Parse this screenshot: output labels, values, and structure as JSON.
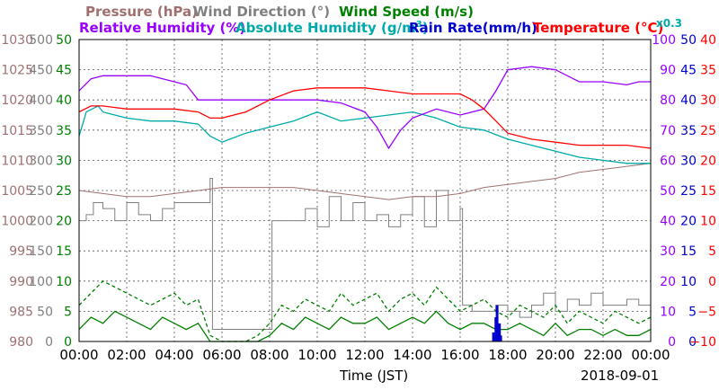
{
  "chart_data": {
    "type": "line",
    "date_label": "2018-09-01",
    "x_label": "Time (JST)",
    "x_ticks": [
      "00:00",
      "02:00",
      "04:00",
      "06:00",
      "08:00",
      "10:00",
      "12:00",
      "14:00",
      "16:00",
      "18:00",
      "20:00",
      "22:00",
      "00:00"
    ],
    "legend_row1": [
      {
        "text": "Pressure (hPa)",
        "color": "#a07070"
      },
      {
        "text": "Wind Direction (°)",
        "color": "#808080"
      },
      {
        "text": "Wind Speed (m/s)",
        "color": "#008000"
      }
    ],
    "legend_row2": [
      {
        "text": "Relative Humidity (%)",
        "color": "#9900ff"
      },
      {
        "text": "Absolute Humidity (g/m",
        "sup": "3",
        "tail": ")",
        "color": "#00aaaa"
      },
      {
        "text": "Rain Rate(mm/h)",
        "color": "#0000cc"
      },
      {
        "text": "Temperature (°C)",
        "color": "#ff0000"
      }
    ],
    "multiplier": {
      "text": "x0.3",
      "color": "#00aaaa"
    },
    "axes": [
      {
        "name": "pressure",
        "color": "#a07070",
        "ticks": [
          "980",
          "985",
          "990",
          "995",
          "1000",
          "1005",
          "1010",
          "1015",
          "1020",
          "1025",
          "1030"
        ],
        "range": [
          980,
          1030
        ]
      },
      {
        "name": "wind_direction",
        "color": "#808080",
        "ticks": [
          "0",
          "50",
          "100",
          "150",
          "200",
          "250",
          "300",
          "350",
          "400",
          "450",
          "500"
        ],
        "range": [
          0,
          500
        ]
      },
      {
        "name": "wind_speed",
        "color": "#008000",
        "ticks": [
          "0",
          "5",
          "10",
          "15",
          "20",
          "25",
          "30",
          "35",
          "40",
          "45",
          "50"
        ],
        "range": [
          0,
          50
        ]
      },
      {
        "name": "relative_humidity",
        "color": "#9900ff",
        "ticks": [
          "0",
          "10",
          "20",
          "30",
          "40",
          "50",
          "60",
          "70",
          "80",
          "90",
          "100"
        ],
        "range": [
          0,
          100
        ]
      },
      {
        "name": "rain_rate",
        "color": "#0000cc",
        "ticks": [
          "0",
          "5",
          "10",
          "15",
          "20",
          "25",
          "30",
          "35",
          "40",
          "45",
          "50"
        ],
        "range": [
          0,
          50
        ]
      },
      {
        "name": "temperature",
        "color": "#ff0000",
        "ticks": [
          "−10",
          "−5",
          "0",
          "5",
          "10",
          "15",
          "20",
          "25",
          "30",
          "35",
          "40"
        ],
        "range": [
          -10,
          40
        ]
      }
    ],
    "series": [
      {
        "name": "Temperature (°C)",
        "color": "#ff0000",
        "axis": "temperature",
        "style": "solid",
        "x": [
          0,
          0.5,
          1,
          2,
          3,
          4,
          5,
          5.5,
          6,
          7,
          8,
          9,
          10,
          11,
          12,
          13,
          14,
          15,
          16,
          16.5,
          17,
          17.5,
          18,
          19,
          20,
          21,
          22,
          23,
          24
        ],
        "y": [
          28,
          29,
          29,
          28.5,
          28.5,
          28.5,
          28,
          27,
          27,
          28,
          30,
          31.5,
          32,
          32,
          32,
          31.5,
          31,
          31,
          31,
          30,
          28.5,
          26.5,
          24.5,
          23.5,
          23,
          22.5,
          22.5,
          22.5,
          22
        ]
      },
      {
        "name": "Absolute Humidity (g/m3)",
        "color": "#00aaaa",
        "axis": "wind_speed",
        "style": "solid",
        "x": [
          0,
          0.3,
          0.8,
          1,
          2,
          3,
          4,
          5,
          5.5,
          6,
          7,
          8,
          9,
          10,
          11,
          12,
          13,
          14,
          15,
          16,
          17,
          18,
          19,
          20,
          21,
          22,
          23,
          24
        ],
        "y": [
          34,
          38,
          39,
          38,
          37,
          36.5,
          36.5,
          36,
          34,
          33,
          34.5,
          35.5,
          36.5,
          38,
          36.5,
          37,
          37.5,
          38,
          37,
          35.5,
          35,
          33.5,
          32.5,
          31.5,
          30.5,
          30,
          29.5,
          29.5
        ]
      },
      {
        "name": "Relative Humidity (%)",
        "color": "#9900ff",
        "axis": "relative_humidity",
        "style": "solid",
        "x": [
          0,
          0.5,
          1,
          2,
          3,
          4,
          4.5,
          5,
          6,
          7,
          8,
          9,
          10,
          11,
          12,
          12.5,
          13,
          13.5,
          14,
          15,
          16,
          17,
          17.5,
          18,
          19,
          20,
          21,
          22,
          23,
          23.5,
          24
        ],
        "y": [
          83,
          87,
          88,
          88,
          88,
          86,
          85,
          80,
          80,
          80,
          80,
          80,
          80,
          79,
          76,
          71,
          64,
          70,
          74,
          77,
          75,
          77,
          83,
          90,
          91,
          90,
          86,
          86,
          85,
          86,
          86
        ]
      },
      {
        "name": "Pressure (hPa)",
        "color": "#a07070",
        "axis": "pressure",
        "style": "solid",
        "x": [
          0,
          1,
          2,
          3,
          4,
          5,
          6,
          7,
          8,
          9,
          10,
          11,
          12,
          13,
          14,
          15,
          16,
          17,
          18,
          19,
          20,
          21,
          22,
          23,
          24
        ],
        "y": [
          1005,
          1004.5,
          1004,
          1004,
          1004.5,
          1005,
          1005.5,
          1005.5,
          1005.5,
          1005.5,
          1005,
          1004.5,
          1004,
          1003.5,
          1004,
          1004,
          1004.5,
          1005.5,
          1006,
          1006.5,
          1007,
          1008,
          1008.5,
          1009,
          1009.5
        ]
      },
      {
        "name": "Wind Direction (°)",
        "color": "#808080",
        "axis": "wind_direction",
        "style": "solid",
        "x": [
          0,
          0.3,
          0.6,
          1,
          1.5,
          2,
          2.5,
          3,
          3.5,
          4,
          4.5,
          5,
          5.3,
          5.5,
          5.6,
          7.5,
          8,
          8.1,
          9,
          9.5,
          10,
          10.5,
          11,
          11.5,
          12,
          12.5,
          13,
          13.5,
          14,
          14.5,
          15,
          15.5,
          16,
          16.1,
          16.5,
          17,
          17.5,
          18,
          18.5,
          19,
          19.5,
          20,
          20.5,
          21,
          21.5,
          22,
          22.5,
          23,
          23.5,
          24
        ],
        "y": [
          200,
          210,
          230,
          220,
          200,
          230,
          210,
          200,
          220,
          230,
          230,
          230,
          230,
          270,
          20,
          20,
          20,
          200,
          200,
          220,
          190,
          240,
          200,
          230,
          200,
          210,
          190,
          210,
          240,
          190,
          250,
          200,
          220,
          60,
          50,
          50,
          60,
          50,
          40,
          60,
          80,
          50,
          70,
          60,
          80,
          60,
          60,
          70,
          60,
          60
        ]
      },
      {
        "name": "Wind Speed (m/s) max",
        "color": "#008000",
        "axis": "wind_speed",
        "style": "dashed",
        "x": [
          0,
          0.5,
          1,
          1.5,
          2,
          2.5,
          3,
          3.5,
          4,
          4.5,
          5,
          5.5,
          6,
          7,
          7.5,
          8,
          8.5,
          9,
          9.5,
          10,
          10.5,
          11,
          11.5,
          12,
          12.5,
          13,
          13.5,
          14,
          14.5,
          15,
          15.5,
          16,
          16.5,
          17,
          17.5,
          18,
          18.5,
          19,
          19.5,
          20,
          20.5,
          21,
          21.5,
          22,
          22.5,
          23,
          23.5,
          24
        ],
        "y": [
          6,
          8,
          10,
          9,
          8,
          7,
          6,
          7,
          8,
          6,
          7,
          1,
          0,
          0,
          1,
          3,
          6,
          5,
          7,
          6,
          5,
          8,
          6,
          7,
          8,
          5,
          7,
          8,
          6,
          9,
          7,
          5,
          6,
          7,
          5,
          4,
          6,
          5,
          4,
          6,
          3,
          5,
          4,
          3,
          5,
          4,
          3,
          4
        ]
      },
      {
        "name": "Wind Speed (m/s) mean",
        "color": "#008000",
        "axis": "wind_speed",
        "style": "solid",
        "x": [
          0,
          0.5,
          1,
          1.5,
          2,
          2.5,
          3,
          3.5,
          4,
          4.5,
          5,
          5.5,
          6,
          7,
          7.5,
          8,
          8.5,
          9,
          9.5,
          10,
          10.5,
          11,
          11.5,
          12,
          12.5,
          13,
          13.5,
          14,
          14.5,
          15,
          15.5,
          16,
          16.5,
          17,
          17.5,
          18,
          18.5,
          19,
          19.5,
          20,
          20.5,
          21,
          21.5,
          22,
          22.5,
          23,
          23.5,
          24
        ],
        "y": [
          2,
          4,
          3,
          5,
          4,
          3,
          2,
          4,
          3,
          2,
          3,
          0,
          0,
          0,
          0,
          1,
          3,
          2,
          4,
          3,
          2,
          4,
          3,
          3,
          4,
          2,
          3,
          4,
          3,
          5,
          3,
          2,
          3,
          3,
          2,
          2,
          3,
          2,
          1,
          3,
          1,
          2,
          2,
          1,
          2,
          1,
          1,
          2
        ]
      },
      {
        "name": "Rain Rate(mm/h)",
        "color": "#0000cc",
        "axis": "rain_rate",
        "style": "bars",
        "x": [
          17.4,
          17.5,
          17.55,
          17.6,
          17.65,
          17.7
        ],
        "y": [
          1.5,
          4,
          6,
          2.5,
          3,
          1
        ]
      }
    ],
    "grid": true
  }
}
